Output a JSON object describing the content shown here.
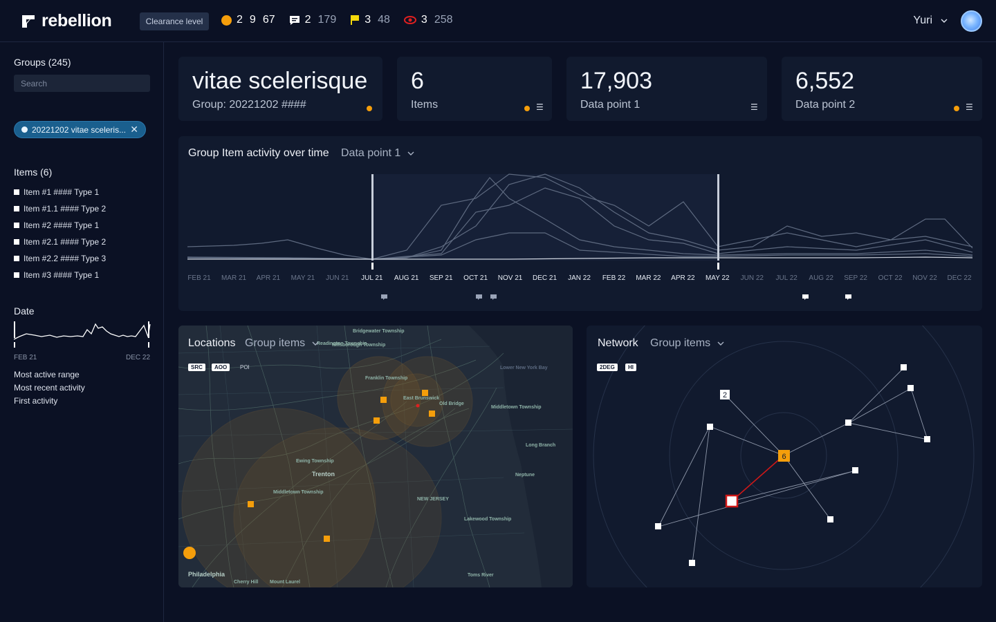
{
  "app": {
    "brand": "rebellion",
    "clearance_label": "Clearance level"
  },
  "header_stats": [
    {
      "icon": "orange-dot-icon",
      "a": "2",
      "b": "9",
      "c": "67"
    },
    {
      "icon": "comment-icon",
      "a": "2",
      "b": "179"
    },
    {
      "icon": "flag-icon",
      "a": "3",
      "b": "48"
    },
    {
      "icon": "eye-icon",
      "a": "3",
      "b": "258"
    }
  ],
  "user": {
    "name": "Yuri"
  },
  "sidebar": {
    "groups_title": "Groups (245)",
    "search_placeholder": "Search",
    "chip_label": "20221202 vitae sceleris...",
    "items_title": "Items (6)",
    "items": [
      "Item #1 #### Type 1",
      "Item #1.1 #### Type 2",
      "Item #2 #### Type 1",
      "Item #2.1 #### Type 2",
      "Item #2.2 #### Type 3",
      "Item #3 #### Type 1"
    ],
    "date_title": "Date",
    "date_start": "FEB 21",
    "date_end": "DEC 22",
    "links": [
      "Most active range",
      "Most recent activity",
      "First activity"
    ]
  },
  "cards": [
    {
      "big": "vitae scelerisque",
      "sub": "Group: 20221202 ####"
    },
    {
      "big": "6",
      "sub": "Items"
    },
    {
      "big": "17,903",
      "sub": "Data point 1"
    },
    {
      "big": "6,552",
      "sub": "Data point 2"
    }
  ],
  "activity": {
    "title": "Group Item activity over time",
    "dropdown": "Data point 1",
    "months": [
      "FEB 21",
      "MAR 21",
      "APR 21",
      "MAY 21",
      "JUN 21",
      "JUL 21",
      "AUG 21",
      "SEP 21",
      "OCT 21",
      "NOV 21",
      "DEC 21",
      "JAN 22",
      "FEB 22",
      "MAR 22",
      "APR 22",
      "MAY 22",
      "JUN 22",
      "JUL 22",
      "AUG 22",
      "SEP 22",
      "OCT 22",
      "NOV 22",
      "DEC 22"
    ],
    "selected_from": "JUL 21",
    "selected_to": "MAY 22"
  },
  "locations": {
    "title": "Locations",
    "dropdown": "Group items",
    "tags": [
      "SRC",
      "AOO",
      "POI"
    ],
    "places": [
      "Hillsborough Township",
      "Franklin Township",
      "East Brunswick",
      "Old Bridge",
      "Middletown Township",
      "Long Branch",
      "Ewing Township",
      "Trenton",
      "Middletown Township",
      "Neptune",
      "NEW JERSEY",
      "Lakewood Township",
      "Toms River",
      "Philadelphia",
      "Cherry Hill",
      "Mount Laurel",
      "Lower New York Bay",
      "Bridgewater Township",
      "Readington Township"
    ]
  },
  "network": {
    "title": "Network",
    "dropdown": "Group items",
    "tags": [
      "2DEG",
      "HI"
    ],
    "hub_label": "6",
    "node_label": "2"
  },
  "colors": {
    "accent": "#f59e0b",
    "bg": "#0b1124",
    "panel": "#111a2e",
    "chip": "#1a5f8e",
    "alert": "#e02020"
  }
}
